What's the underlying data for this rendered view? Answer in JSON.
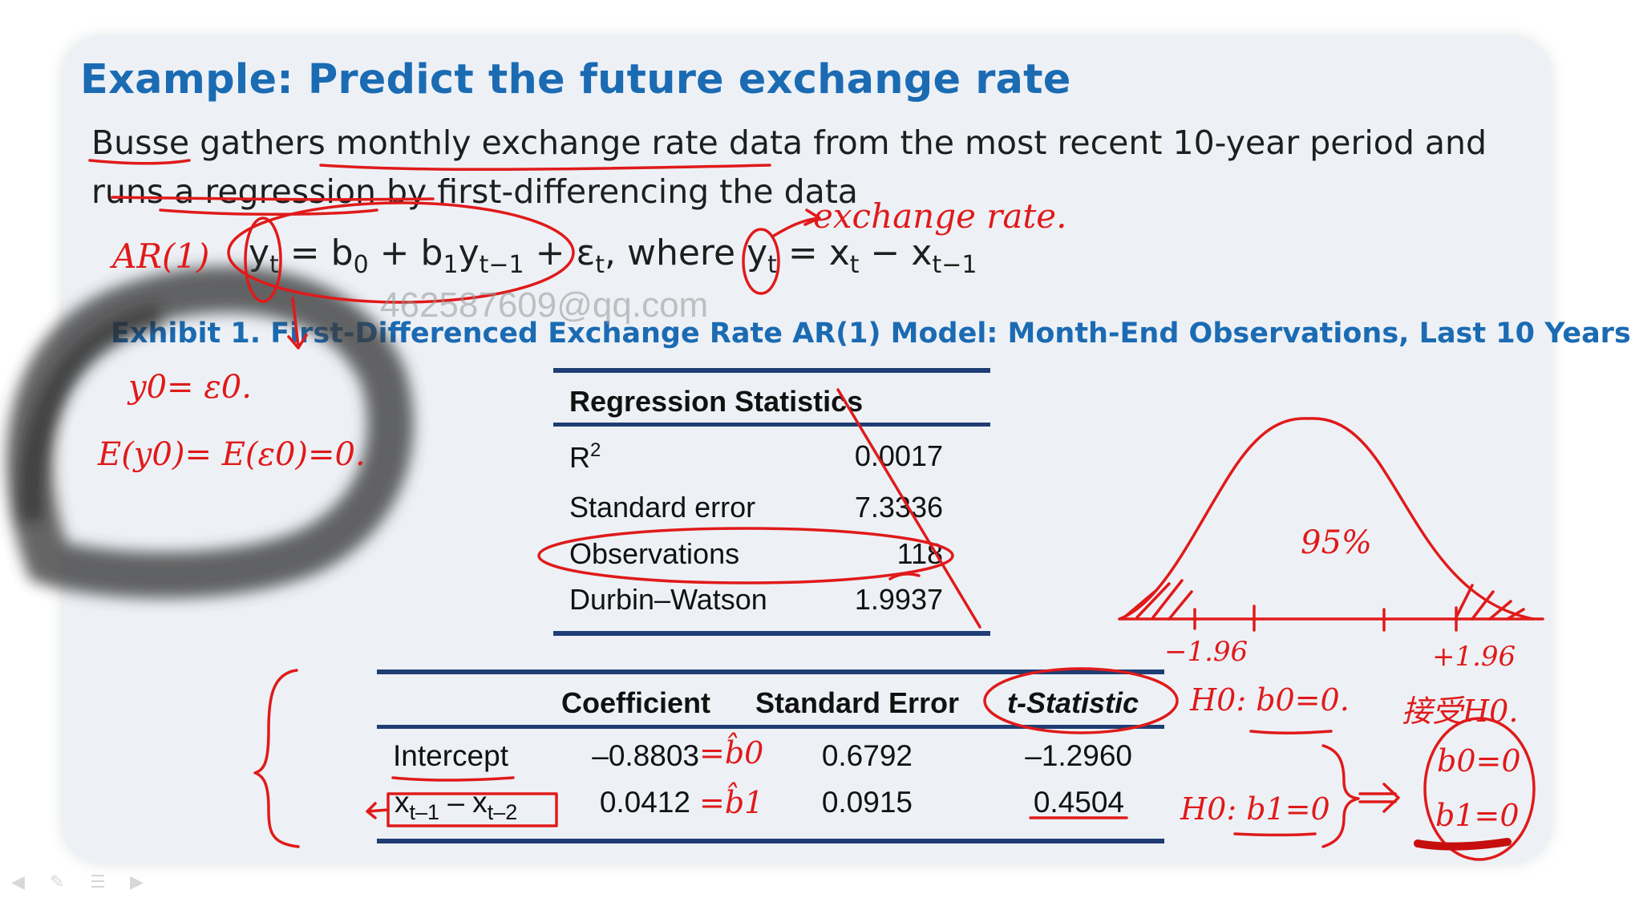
{
  "slide": {
    "title": "Example: Predict the future exchange rate",
    "line1": "Busse gathers monthly exchange rate data from the most recent 10-year period and",
    "line2": "runs a regression by first-differencing the data",
    "equation": {
      "y": "y",
      "t": "t",
      "eq_mid1": " = b",
      "zero": "0",
      "eq_mid2": " + b",
      "one": "1",
      "eq_mid3": "y",
      "tm1": "t−1",
      "eq_mid4": " + ε",
      "tcomma": "t",
      "eq_mid5": ", where y",
      "t2": "t",
      "eq_mid6": " = x",
      "t3": "t",
      "eq_mid7": " − x",
      "tm1b": "t−1"
    },
    "watermark": "462587609@qq.com",
    "exhibit_title": "Exhibit 1. First-Differenced Exchange Rate AR(1) Model: Month-End Observations, Last 10 Years"
  },
  "regression_statistics": {
    "heading": "Regression Statistics",
    "rows": [
      {
        "label": "R",
        "sup": "2",
        "value": "0.0017"
      },
      {
        "label": "Standard error",
        "sup": "",
        "value": "7.3336"
      },
      {
        "label": "Observations",
        "sup": "",
        "value": "118"
      },
      {
        "label": "Durbin–Watson",
        "sup": "",
        "value": "1.9937"
      }
    ]
  },
  "coefficients": {
    "headers": [
      "Coefficient",
      "Standard Error",
      "t-Statistic"
    ],
    "rows": [
      {
        "name": "Intercept",
        "name_sub": "",
        "coefficient": "–0.8803",
        "std_error": "0.6792",
        "t_stat": "–1.2960"
      },
      {
        "name": "x",
        "name_sub": "t–1",
        "name_rest": " – x",
        "name_sub2": "t–2",
        "coefficient": "0.0412",
        "std_error": "0.0915",
        "t_stat": "0.4504"
      }
    ]
  },
  "annotations": {
    "ar1": "AR(1)",
    "exchange_rate": "exchange rate.",
    "y0_eq": "y0= ε0.",
    "expectation": "E(y0)= E(ε0)=0.",
    "pct": "95%",
    "neg_crit": "−1.96",
    "pos_crit": "+1.96",
    "h0_b0": "H0: b0=0.",
    "h0_b1": "H0: b1=0",
    "reject_h0": "接受H0.",
    "concl_b0": "b0=0",
    "concl_b1": "b1=0",
    "b0_hat": "=b̂0",
    "b1_hat": "=b̂1",
    "ink_color": "#e01a1a"
  },
  "player_controls": [
    "prev-icon",
    "pen-icon",
    "menu-icon",
    "next-icon"
  ]
}
